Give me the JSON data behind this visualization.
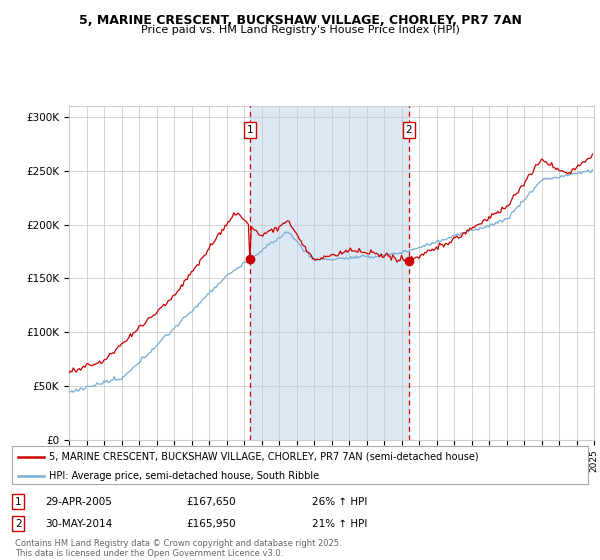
{
  "title1": "5, MARINE CRESCENT, BUCKSHAW VILLAGE, CHORLEY, PR7 7AN",
  "title2": "Price paid vs. HM Land Registry's House Price Index (HPI)",
  "legend_line1": "5, MARINE CRESCENT, BUCKSHAW VILLAGE, CHORLEY, PR7 7AN (semi-detached house)",
  "legend_line2": "HPI: Average price, semi-detached house, South Ribble",
  "footer": "Contains HM Land Registry data © Crown copyright and database right 2025.\nThis data is licensed under the Open Government Licence v3.0.",
  "sale1_date": "29-APR-2005",
  "sale1_price": 167650,
  "sale1_hpi": "26% ↑ HPI",
  "sale2_date": "30-MAY-2014",
  "sale2_price": 165950,
  "sale2_hpi": "21% ↑ HPI",
  "sale1_x": 2005.33,
  "sale2_x": 2014.42,
  "yticks": [
    0,
    50000,
    100000,
    150000,
    200000,
    250000,
    300000
  ],
  "ytick_labels": [
    "£0",
    "£50K",
    "£100K",
    "£150K",
    "£200K",
    "£250K",
    "£300K"
  ],
  "background_color": "#ffffff",
  "shaded_region_color": "#dce9f5",
  "red_color": "#cc0000",
  "blue_color": "#7aadd4",
  "grid_color": "#cccccc",
  "vline_color": "#cc0000",
  "xmin": 1995,
  "xmax": 2025,
  "ymin": 0,
  "ymax": 310000
}
